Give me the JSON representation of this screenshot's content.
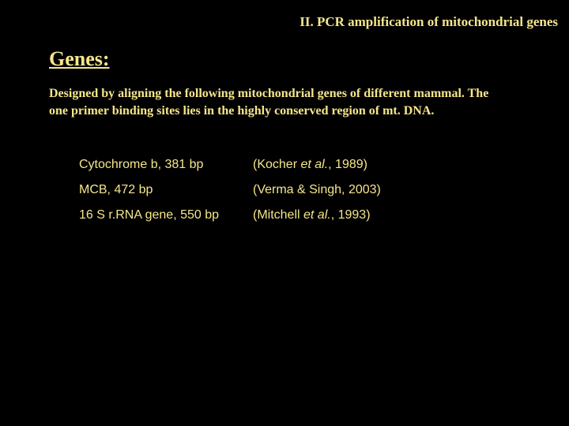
{
  "title": "II. PCR amplification of  mitochondrial genes",
  "heading": "Genes:",
  "description": "Designed by aligning the following mitochondrial genes of different mammal. The one primer binding sites lies in the highly conserved region of  mt. DNA.",
  "genes": [
    {
      "name": "Cytochrome b, 381 bp",
      "ref_pre": "(Kocher ",
      "ref_etal": "et al.",
      "ref_post": ", 1989)"
    },
    {
      "name": "MCB, 472 bp",
      "ref_pre": "(Verma & Singh, 2003)",
      "ref_etal": "",
      "ref_post": ""
    },
    {
      "name": "16 S r.RNA gene, 550 bp",
      "ref_pre": " (Mitchell ",
      "ref_etal": "et al.",
      "ref_post": ", 1993)"
    }
  ],
  "colors": {
    "background": "#000000",
    "text": "#f5e68a"
  }
}
